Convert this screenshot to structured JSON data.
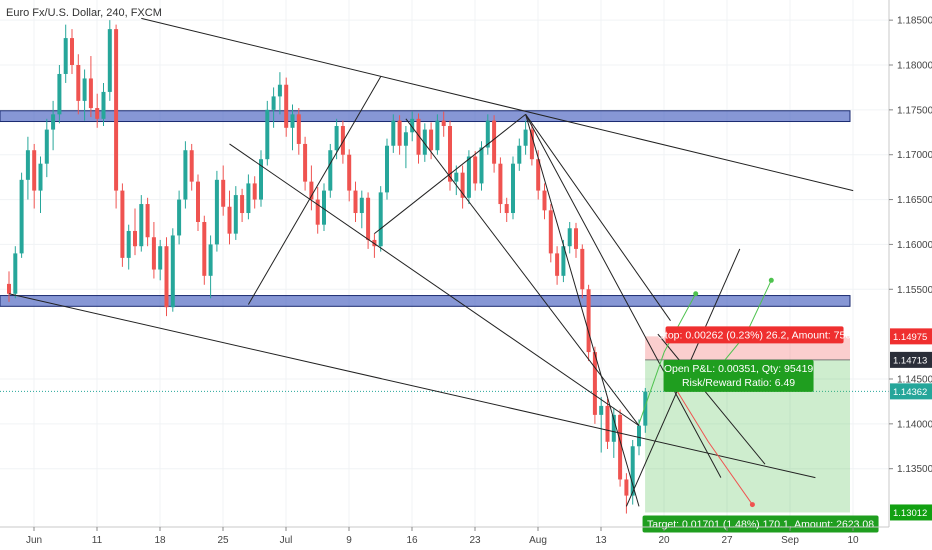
{
  "chart_data": {
    "type": "candlestick",
    "title": "Euro Fx/U.S. Dollar, 240, FXCM",
    "ylim": [
      1.1285,
      1.1868
    ],
    "y_ticks": [
      1.185,
      1.18,
      1.175,
      1.17,
      1.165,
      1.16,
      1.155,
      1.145,
      1.14,
      1.135
    ],
    "x_ticks": [
      {
        "label": "Jun",
        "x": 0
      },
      {
        "label": "11",
        "x": 10
      },
      {
        "label": "18",
        "x": 20
      },
      {
        "label": "25",
        "x": 30
      },
      {
        "label": "Jul",
        "x": 40
      },
      {
        "label": "9",
        "x": 50
      },
      {
        "label": "16",
        "x": 60
      },
      {
        "label": "23",
        "x": 70
      },
      {
        "label": "Aug",
        "x": 80
      },
      {
        "label": "13",
        "x": 90
      },
      {
        "label": "20",
        "x": 100
      },
      {
        "label": "27",
        "x": 110
      },
      {
        "label": "Sep",
        "x": 120
      },
      {
        "label": "10",
        "x": 130
      }
    ],
    "price_tags": [
      {
        "label": "1.14975",
        "value": 1.14975,
        "color": "#ef2f2f"
      },
      {
        "label": "1.14713",
        "value": 1.14713,
        "color": "#2a2e39"
      },
      {
        "label": "1.14362",
        "value": 1.14362,
        "color": "#26a69a"
      },
      {
        "label": "1.13012",
        "value": 1.13012,
        "color": "#12a012"
      }
    ],
    "current_price": 1.14362,
    "zones": [
      {
        "y1": 1.7485,
        "y2": 1.7375,
        "y1v": 1.1749,
        "y2v": 1.1737
      },
      {
        "y1v": 1.1543,
        "y2v": 1.1531
      }
    ],
    "position": {
      "stop_text": "Stop: 0.00262 (0.23%) 26.2, Amount: 750",
      "pnl_text": "Open P&L: 0.00351, Qty: 95419",
      "rr_text": "Risk/Reward Ratio: 6.49",
      "target_text": "Target: 0.01701 (1.48%) 170.1, Amount: 2623.08",
      "entry": 1.14713,
      "stop": 1.14975,
      "target": 1.13012,
      "x_start": 97,
      "x_end": 126
    },
    "candles": [
      {
        "x": 0,
        "o": 1.1556,
        "h": 1.157,
        "l": 1.1536,
        "c": 1.1545
      },
      {
        "x": 1,
        "o": 1.1545,
        "h": 1.1598,
        "l": 1.154,
        "c": 1.159
      },
      {
        "x": 2,
        "o": 1.159,
        "h": 1.168,
        "l": 1.1585,
        "c": 1.1672
      },
      {
        "x": 3,
        "o": 1.1672,
        "h": 1.172,
        "l": 1.165,
        "c": 1.1705
      },
      {
        "x": 4,
        "o": 1.1705,
        "h": 1.1712,
        "l": 1.164,
        "c": 1.166
      },
      {
        "x": 5,
        "o": 1.166,
        "h": 1.1698,
        "l": 1.1635,
        "c": 1.169
      },
      {
        "x": 6,
        "o": 1.169,
        "h": 1.174,
        "l": 1.1675,
        "c": 1.1728
      },
      {
        "x": 7,
        "o": 1.1728,
        "h": 1.176,
        "l": 1.1705,
        "c": 1.1745
      },
      {
        "x": 8,
        "o": 1.1745,
        "h": 1.18,
        "l": 1.1735,
        "c": 1.179
      },
      {
        "x": 9,
        "o": 1.179,
        "h": 1.1845,
        "l": 1.178,
        "c": 1.183
      },
      {
        "x": 10,
        "o": 1.183,
        "h": 1.184,
        "l": 1.179,
        "c": 1.18
      },
      {
        "x": 11,
        "o": 1.18,
        "h": 1.1812,
        "l": 1.1745,
        "c": 1.176
      },
      {
        "x": 12,
        "o": 1.176,
        "h": 1.1795,
        "l": 1.1738,
        "c": 1.1785
      },
      {
        "x": 13,
        "o": 1.1785,
        "h": 1.181,
        "l": 1.1742,
        "c": 1.1752
      },
      {
        "x": 14,
        "o": 1.1752,
        "h": 1.1768,
        "l": 1.173,
        "c": 1.174
      },
      {
        "x": 15,
        "o": 1.174,
        "h": 1.178,
        "l": 1.1732,
        "c": 1.177
      },
      {
        "x": 16,
        "o": 1.177,
        "h": 1.185,
        "l": 1.176,
        "c": 1.184
      },
      {
        "x": 17,
        "o": 1.184,
        "h": 1.1845,
        "l": 1.164,
        "c": 1.166
      },
      {
        "x": 18,
        "o": 1.166,
        "h": 1.1668,
        "l": 1.1575,
        "c": 1.1585
      },
      {
        "x": 19,
        "o": 1.1585,
        "h": 1.1622,
        "l": 1.1572,
        "c": 1.1615
      },
      {
        "x": 20,
        "o": 1.1615,
        "h": 1.164,
        "l": 1.1588,
        "c": 1.1598
      },
      {
        "x": 21,
        "o": 1.1598,
        "h": 1.1655,
        "l": 1.1592,
        "c": 1.1645
      },
      {
        "x": 22,
        "o": 1.1645,
        "h": 1.1652,
        "l": 1.1598,
        "c": 1.1608
      },
      {
        "x": 23,
        "o": 1.1608,
        "h": 1.1625,
        "l": 1.1562,
        "c": 1.1572
      },
      {
        "x": 24,
        "o": 1.1572,
        "h": 1.1605,
        "l": 1.156,
        "c": 1.1598
      },
      {
        "x": 25,
        "o": 1.1598,
        "h": 1.1608,
        "l": 1.152,
        "c": 1.153
      },
      {
        "x": 26,
        "o": 1.153,
        "h": 1.1618,
        "l": 1.1525,
        "c": 1.161
      },
      {
        "x": 27,
        "o": 1.161,
        "h": 1.166,
        "l": 1.16,
        "c": 1.165
      },
      {
        "x": 28,
        "o": 1.165,
        "h": 1.1715,
        "l": 1.164,
        "c": 1.1705
      },
      {
        "x": 29,
        "o": 1.1705,
        "h": 1.1712,
        "l": 1.166,
        "c": 1.167
      },
      {
        "x": 30,
        "o": 1.167,
        "h": 1.1678,
        "l": 1.1615,
        "c": 1.1625
      },
      {
        "x": 31,
        "o": 1.1625,
        "h": 1.1632,
        "l": 1.1555,
        "c": 1.1565
      },
      {
        "x": 32,
        "o": 1.1565,
        "h": 1.161,
        "l": 1.154,
        "c": 1.16
      },
      {
        "x": 33,
        "o": 1.16,
        "h": 1.1682,
        "l": 1.1592,
        "c": 1.1672
      },
      {
        "x": 34,
        "o": 1.1672,
        "h": 1.1688,
        "l": 1.1632,
        "c": 1.1642
      },
      {
        "x": 35,
        "o": 1.1642,
        "h": 1.166,
        "l": 1.16,
        "c": 1.1612
      },
      {
        "x": 36,
        "o": 1.1612,
        "h": 1.1665,
        "l": 1.1605,
        "c": 1.1655
      },
      {
        "x": 37,
        "o": 1.1655,
        "h": 1.1662,
        "l": 1.1625,
        "c": 1.1635
      },
      {
        "x": 38,
        "o": 1.1635,
        "h": 1.1678,
        "l": 1.1628,
        "c": 1.1668
      },
      {
        "x": 39,
        "o": 1.1668,
        "h": 1.1676,
        "l": 1.164,
        "c": 1.165
      },
      {
        "x": 40,
        "o": 1.165,
        "h": 1.1705,
        "l": 1.1642,
        "c": 1.1695
      },
      {
        "x": 41,
        "o": 1.1695,
        "h": 1.176,
        "l": 1.1688,
        "c": 1.175
      },
      {
        "x": 42,
        "o": 1.175,
        "h": 1.1775,
        "l": 1.173,
        "c": 1.1765
      },
      {
        "x": 43,
        "o": 1.1765,
        "h": 1.1792,
        "l": 1.1745,
        "c": 1.1778
      },
      {
        "x": 44,
        "o": 1.1778,
        "h": 1.1786,
        "l": 1.172,
        "c": 1.173
      },
      {
        "x": 45,
        "o": 1.173,
        "h": 1.1756,
        "l": 1.1705,
        "c": 1.1745
      },
      {
        "x": 46,
        "o": 1.1745,
        "h": 1.1752,
        "l": 1.17,
        "c": 1.1712
      },
      {
        "x": 47,
        "o": 1.1712,
        "h": 1.172,
        "l": 1.166,
        "c": 1.167
      },
      {
        "x": 48,
        "o": 1.167,
        "h": 1.1688,
        "l": 1.1638,
        "c": 1.165
      },
      {
        "x": 49,
        "o": 1.165,
        "h": 1.1664,
        "l": 1.1612,
        "c": 1.1622
      },
      {
        "x": 50,
        "o": 1.1622,
        "h": 1.1668,
        "l": 1.1615,
        "c": 1.166
      },
      {
        "x": 51,
        "o": 1.166,
        "h": 1.1712,
        "l": 1.1652,
        "c": 1.1705
      },
      {
        "x": 52,
        "o": 1.1705,
        "h": 1.174,
        "l": 1.1695,
        "c": 1.1732
      },
      {
        "x": 53,
        "o": 1.1732,
        "h": 1.1738,
        "l": 1.169,
        "c": 1.17
      },
      {
        "x": 54,
        "o": 1.17,
        "h": 1.1706,
        "l": 1.1648,
        "c": 1.166
      },
      {
        "x": 55,
        "o": 1.166,
        "h": 1.167,
        "l": 1.1625,
        "c": 1.1635
      },
      {
        "x": 56,
        "o": 1.1635,
        "h": 1.166,
        "l": 1.1618,
        "c": 1.1652
      },
      {
        "x": 57,
        "o": 1.1652,
        "h": 1.1658,
        "l": 1.1595,
        "c": 1.1605
      },
      {
        "x": 58,
        "o": 1.1605,
        "h": 1.1612,
        "l": 1.1585,
        "c": 1.1598
      },
      {
        "x": 59,
        "o": 1.1598,
        "h": 1.1665,
        "l": 1.1592,
        "c": 1.1658
      },
      {
        "x": 60,
        "o": 1.1658,
        "h": 1.1718,
        "l": 1.165,
        "c": 1.171
      },
      {
        "x": 61,
        "o": 1.171,
        "h": 1.1745,
        "l": 1.1702,
        "c": 1.1738
      },
      {
        "x": 62,
        "o": 1.1738,
        "h": 1.1744,
        "l": 1.17,
        "c": 1.171
      },
      {
        "x": 63,
        "o": 1.171,
        "h": 1.1732,
        "l": 1.1685,
        "c": 1.1725
      },
      {
        "x": 64,
        "o": 1.1725,
        "h": 1.1748,
        "l": 1.1715,
        "c": 1.174
      },
      {
        "x": 65,
        "o": 1.174,
        "h": 1.1746,
        "l": 1.169,
        "c": 1.17
      },
      {
        "x": 66,
        "o": 1.17,
        "h": 1.1735,
        "l": 1.1692,
        "c": 1.1728
      },
      {
        "x": 67,
        "o": 1.1728,
        "h": 1.1736,
        "l": 1.1695,
        "c": 1.1705
      },
      {
        "x": 68,
        "o": 1.1705,
        "h": 1.1745,
        "l": 1.17,
        "c": 1.1738
      },
      {
        "x": 69,
        "o": 1.1738,
        "h": 1.1748,
        "l": 1.172,
        "c": 1.1732
      },
      {
        "x": 70,
        "o": 1.1732,
        "h": 1.1738,
        "l": 1.166,
        "c": 1.167
      },
      {
        "x": 71,
        "o": 1.167,
        "h": 1.1688,
        "l": 1.1655,
        "c": 1.168
      },
      {
        "x": 72,
        "o": 1.168,
        "h": 1.1688,
        "l": 1.164,
        "c": 1.1652
      },
      {
        "x": 73,
        "o": 1.1652,
        "h": 1.1705,
        "l": 1.1645,
        "c": 1.1698
      },
      {
        "x": 74,
        "o": 1.1698,
        "h": 1.1704,
        "l": 1.166,
        "c": 1.1668
      },
      {
        "x": 75,
        "o": 1.1668,
        "h": 1.1715,
        "l": 1.166,
        "c": 1.1708
      },
      {
        "x": 76,
        "o": 1.1708,
        "h": 1.1745,
        "l": 1.17,
        "c": 1.1738
      },
      {
        "x": 77,
        "o": 1.1738,
        "h": 1.1744,
        "l": 1.168,
        "c": 1.169
      },
      {
        "x": 78,
        "o": 1.169,
        "h": 1.1697,
        "l": 1.1635,
        "c": 1.1645
      },
      {
        "x": 79,
        "o": 1.1645,
        "h": 1.1652,
        "l": 1.1625,
        "c": 1.1635
      },
      {
        "x": 80,
        "o": 1.1635,
        "h": 1.1698,
        "l": 1.1628,
        "c": 1.169
      },
      {
        "x": 81,
        "o": 1.169,
        "h": 1.1718,
        "l": 1.1682,
        "c": 1.171
      },
      {
        "x": 82,
        "o": 1.171,
        "h": 1.1738,
        "l": 1.17,
        "c": 1.1728
      },
      {
        "x": 83,
        "o": 1.1728,
        "h": 1.1734,
        "l": 1.1688,
        "c": 1.1695
      },
      {
        "x": 84,
        "o": 1.1695,
        "h": 1.1705,
        "l": 1.165,
        "c": 1.166
      },
      {
        "x": 85,
        "o": 1.166,
        "h": 1.1668,
        "l": 1.1628,
        "c": 1.1638
      },
      {
        "x": 86,
        "o": 1.1638,
        "h": 1.1645,
        "l": 1.158,
        "c": 1.159
      },
      {
        "x": 87,
        "o": 1.159,
        "h": 1.1598,
        "l": 1.1555,
        "c": 1.1565
      },
      {
        "x": 88,
        "o": 1.1565,
        "h": 1.1605,
        "l": 1.1558,
        "c": 1.1598
      },
      {
        "x": 89,
        "o": 1.1598,
        "h": 1.1625,
        "l": 1.159,
        "c": 1.1618
      },
      {
        "x": 90,
        "o": 1.1618,
        "h": 1.1624,
        "l": 1.1585,
        "c": 1.1595
      },
      {
        "x": 91,
        "o": 1.1595,
        "h": 1.16,
        "l": 1.154,
        "c": 1.155
      },
      {
        "x": 92,
        "o": 1.155,
        "h": 1.1555,
        "l": 1.147,
        "c": 1.148
      },
      {
        "x": 93,
        "o": 1.148,
        "h": 1.1486,
        "l": 1.14,
        "c": 1.141
      },
      {
        "x": 94,
        "o": 1.141,
        "h": 1.143,
        "l": 1.1368,
        "c": 1.142
      },
      {
        "x": 95,
        "o": 1.142,
        "h": 1.1428,
        "l": 1.1372,
        "c": 1.138
      },
      {
        "x": 96,
        "o": 1.138,
        "h": 1.1418,
        "l": 1.1362,
        "c": 1.141
      },
      {
        "x": 97,
        "o": 1.141,
        "h": 1.1416,
        "l": 1.133,
        "c": 1.1338
      },
      {
        "x": 98,
        "o": 1.1338,
        "h": 1.1345,
        "l": 1.13,
        "c": 1.132
      },
      {
        "x": 99,
        "o": 1.132,
        "h": 1.1382,
        "l": 1.131,
        "c": 1.1375
      },
      {
        "x": 100,
        "o": 1.1375,
        "h": 1.1405,
        "l": 1.1365,
        "c": 1.1398
      },
      {
        "x": 101,
        "o": 1.1398,
        "h": 1.144,
        "l": 1.139,
        "c": 1.1436
      }
    ]
  }
}
